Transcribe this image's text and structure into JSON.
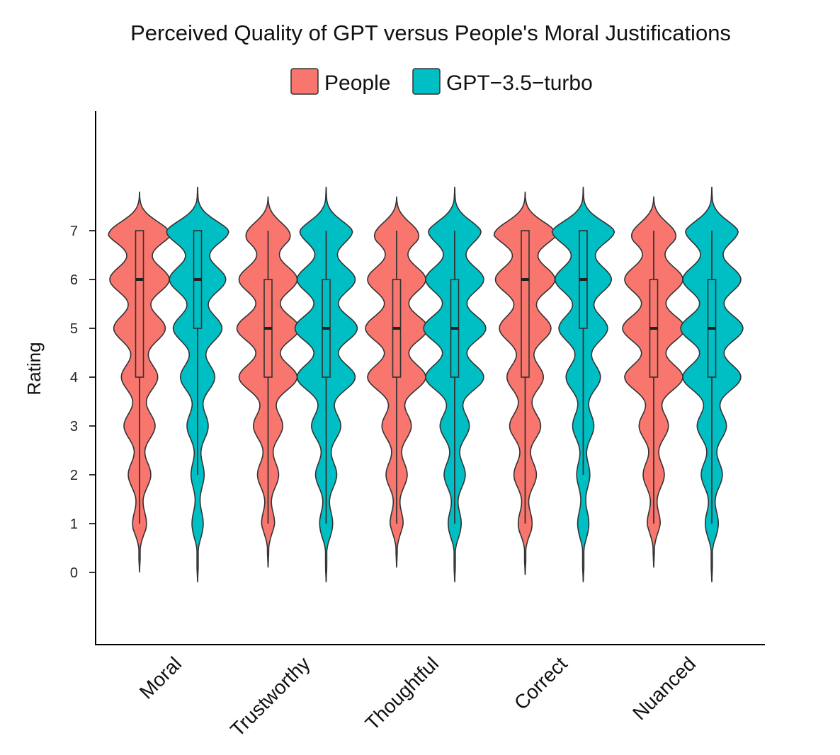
{
  "chart_data": {
    "type": "violin",
    "title": "Perceived Quality of GPT versus People's Moral Justifications",
    "ylabel": "Rating",
    "xlabel": "",
    "categories": [
      "Moral",
      "Trustworthy",
      "Thoughtful",
      "Correct",
      "Nuanced"
    ],
    "y_ticks": [
      0,
      1,
      2,
      3,
      4,
      5,
      6,
      7
    ],
    "ylim": [
      -1.5,
      9.5
    ],
    "legend": {
      "placement": "top-center"
    },
    "grid": false,
    "series": [
      {
        "name": "People",
        "color": "#F8766D",
        "boxes": [
          {
            "category": "Moral",
            "whisker_low": 1,
            "q1": 4,
            "median": 6,
            "q3": 7,
            "whisker_high": 7,
            "density_min": 0,
            "density_max": 7.8
          },
          {
            "category": "Trustworthy",
            "whisker_low": 1,
            "q1": 4,
            "median": 5,
            "q3": 6,
            "whisker_high": 7,
            "density_min": 0.1,
            "density_max": 7.7
          },
          {
            "category": "Thoughtful",
            "whisker_low": 1,
            "q1": 4,
            "median": 5,
            "q3": 6,
            "whisker_high": 7,
            "density_min": 0.1,
            "density_max": 7.7
          },
          {
            "category": "Correct",
            "whisker_low": 1,
            "q1": 4,
            "median": 6,
            "q3": 7,
            "whisker_high": 7,
            "density_min": -0.05,
            "density_max": 7.8
          },
          {
            "category": "Nuanced",
            "whisker_low": 1,
            "q1": 4,
            "median": 5,
            "q3": 6,
            "whisker_high": 7,
            "density_min": 0.1,
            "density_max": 7.7
          }
        ]
      },
      {
        "name": "GPT−3.5−turbo",
        "color": "#00BFC4",
        "boxes": [
          {
            "category": "Moral",
            "whisker_low": 2,
            "q1": 5,
            "median": 6,
            "q3": 7,
            "whisker_high": 7,
            "density_min": -0.2,
            "density_max": 7.9
          },
          {
            "category": "Trustworthy",
            "whisker_low": 1,
            "q1": 4,
            "median": 5,
            "q3": 6,
            "whisker_high": 7,
            "density_min": -0.2,
            "density_max": 7.9
          },
          {
            "category": "Thoughtful",
            "whisker_low": 1,
            "q1": 4,
            "median": 5,
            "q3": 6,
            "whisker_high": 7,
            "density_min": -0.2,
            "density_max": 7.9
          },
          {
            "category": "Correct",
            "whisker_low": 2,
            "q1": 5,
            "median": 6,
            "q3": 7,
            "whisker_high": 7,
            "density_min": -0.2,
            "density_max": 7.9
          },
          {
            "category": "Nuanced",
            "whisker_low": 1,
            "q1": 4,
            "median": 5,
            "q3": 6,
            "whisker_high": 7,
            "density_min": -0.2,
            "density_max": 7.9
          }
        ]
      }
    ]
  }
}
